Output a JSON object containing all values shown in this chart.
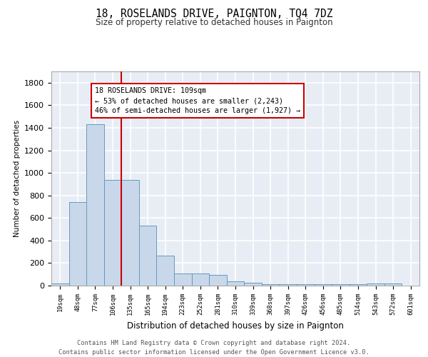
{
  "title1": "18, ROSELANDS DRIVE, PAIGNTON, TQ4 7DZ",
  "title2": "Size of property relative to detached houses in Paignton",
  "xlabel": "Distribution of detached houses by size in Paignton",
  "ylabel": "Number of detached properties",
  "bar_values": [
    20,
    740,
    1430,
    935,
    935,
    530,
    265,
    110,
    110,
    95,
    40,
    25,
    15,
    15,
    10,
    15,
    15,
    15,
    20,
    20
  ],
  "bin_labels": [
    "19sqm",
    "48sqm",
    "77sqm",
    "106sqm",
    "135sqm",
    "165sqm",
    "194sqm",
    "223sqm",
    "252sqm",
    "281sqm",
    "310sqm",
    "339sqm",
    "368sqm",
    "397sqm",
    "426sqm",
    "456sqm",
    "485sqm",
    "514sqm",
    "543sqm",
    "572sqm",
    "601sqm"
  ],
  "bar_color": "#c8d8ea",
  "bar_edge_color": "#6699bb",
  "vline_color": "#cc0000",
  "annotation_text": "18 ROSELANDS DRIVE: 109sqm\n← 53% of detached houses are smaller (2,243)\n46% of semi-detached houses are larger (1,927) →",
  "annotation_box_color": "#ffffff",
  "annotation_box_edge": "#cc0000",
  "footnote": "Contains HM Land Registry data © Crown copyright and database right 2024.\nContains public sector information licensed under the Open Government Licence v3.0.",
  "ylim": [
    0,
    1900
  ],
  "yticks": [
    0,
    200,
    400,
    600,
    800,
    1000,
    1200,
    1400,
    1600,
    1800
  ],
  "background_color": "#e8edf5",
  "grid_color": "#ffffff"
}
